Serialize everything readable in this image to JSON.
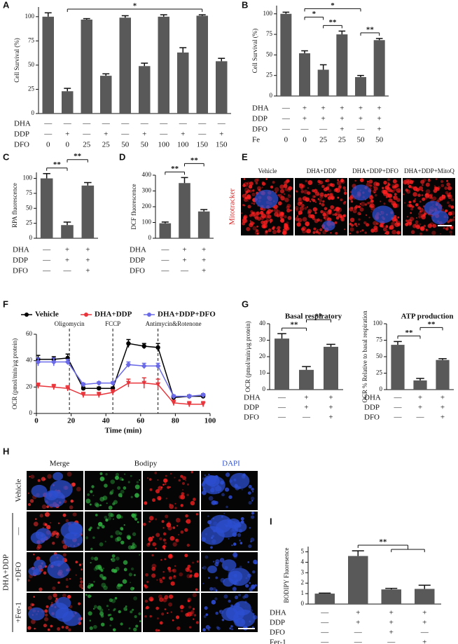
{
  "chart_data": [
    {
      "type": "bar",
      "letter": "A",
      "ylabel": "Cell Survival  (%)",
      "ylim": [
        0,
        110
      ],
      "yticks": [
        0,
        25,
        50,
        75,
        100
      ],
      "values": [
        100,
        23,
        97,
        39,
        99,
        49,
        100,
        63,
        101,
        54
      ],
      "errors": [
        4,
        3,
        1,
        2,
        2,
        3,
        2,
        5,
        1,
        3
      ],
      "rows": [
        {
          "label": "DHA",
          "signs": [
            "—",
            "—",
            "—",
            "—",
            "—",
            "—",
            "—",
            "—",
            "—",
            "—"
          ]
        },
        {
          "label": "DDP",
          "signs": [
            "—",
            "+",
            "—",
            "+",
            "—",
            "+",
            "—",
            "+",
            "—",
            "+"
          ]
        },
        {
          "label": "DFO",
          "signs": [
            "0",
            "0",
            "25",
            "25",
            "50",
            "50",
            "100",
            "100",
            "150",
            "150"
          ]
        }
      ],
      "brackets": [
        {
          "from": 1,
          "to": 8,
          "label": "*"
        }
      ]
    },
    {
      "type": "bar",
      "letter": "B",
      "ylabel": "Cell Survival  (%)",
      "ylim": [
        0,
        110
      ],
      "yticks": [
        0,
        25,
        50,
        75,
        100
      ],
      "values": [
        100,
        52,
        32,
        75,
        23,
        68
      ],
      "errors": [
        2,
        3,
        6,
        4,
        2,
        2
      ],
      "rows": [
        {
          "label": "DHA",
          "signs": [
            "—",
            "+",
            "+",
            "+",
            "+",
            "+"
          ]
        },
        {
          "label": "DDP",
          "signs": [
            "—",
            "+",
            "+",
            "+",
            "+",
            "+"
          ]
        },
        {
          "label": "DFO",
          "signs": [
            "—",
            "—",
            "—",
            "+",
            "—",
            "+"
          ]
        },
        {
          "label": "Fe",
          "signs": [
            "0",
            "0",
            "25",
            "25",
            "50",
            "50"
          ]
        }
      ],
      "brackets": [
        {
          "from": 2,
          "to": 3,
          "label": "**"
        },
        {
          "from": 1,
          "to": 2,
          "label": "*"
        },
        {
          "from": 4,
          "to": 5,
          "label": "**"
        },
        {
          "from": 1,
          "to": 4,
          "label": "*"
        }
      ]
    },
    {
      "type": "bar",
      "letter": "C",
      "ylabel": "RPA fluorescence",
      "ylim": [
        0,
        110
      ],
      "yticks": [
        0,
        25,
        50,
        75,
        100
      ],
      "values": [
        100,
        22,
        88
      ],
      "errors": [
        8,
        5,
        5
      ],
      "rows": [
        {
          "label": "DHA",
          "signs": [
            "—",
            "+",
            "+"
          ]
        },
        {
          "label": "DDP",
          "signs": [
            "—",
            "+",
            "+"
          ]
        },
        {
          "label": "DFO",
          "signs": [
            "—",
            "—",
            "+"
          ]
        }
      ],
      "brackets": [
        {
          "from": 0,
          "to": 1,
          "label": "**"
        },
        {
          "from": 1,
          "to": 2,
          "label": "**"
        }
      ]
    },
    {
      "type": "bar",
      "letter": "D",
      "ylabel": "DCF fluorescence",
      "ylim": [
        0,
        400
      ],
      "yticks": [
        0,
        100,
        200,
        300,
        400
      ],
      "values": [
        95,
        350,
        170
      ],
      "errors": [
        8,
        35,
        12
      ],
      "rows": [
        {
          "label": "DHA",
          "signs": [
            "—",
            "+",
            "+"
          ]
        },
        {
          "label": "DDP",
          "signs": [
            "—",
            "+",
            "+"
          ]
        },
        {
          "label": "DFO",
          "signs": [
            "—",
            "—",
            "+"
          ]
        }
      ],
      "brackets": [
        {
          "from": 0,
          "to": 1,
          "label": "**"
        },
        {
          "from": 1,
          "to": 2,
          "label": "**"
        }
      ]
    },
    {
      "type": "line",
      "letter": "F",
      "xlabel": "Time (min)",
      "ylabel": "OCR (pmol/min/μg protein)",
      "xlim": [
        0,
        100
      ],
      "xticks": [
        0,
        20,
        40,
        60,
        80,
        100
      ],
      "ylim": [
        0,
        60
      ],
      "yticks": [
        0,
        20,
        40,
        60
      ],
      "x": [
        1,
        10,
        18,
        27,
        36,
        44,
        53,
        62,
        70,
        79,
        88,
        96
      ],
      "events": [
        {
          "x": 19,
          "label": "Oligomycin"
        },
        {
          "x": 44,
          "label": "FCCP"
        },
        {
          "x": 70,
          "label": "Antimycin&Rotenone"
        }
      ],
      "series": [
        {
          "name": "Vehicle",
          "color": "#000000",
          "values": [
            41,
            41,
            42,
            19,
            19,
            19,
            53,
            51,
            50,
            12,
            13,
            13
          ],
          "errors": [
            3,
            2,
            3,
            1,
            1,
            1,
            3,
            2,
            3,
            1,
            1,
            1
          ]
        },
        {
          "name": "DHA+DDP",
          "color": "#e8343a",
          "values": [
            21,
            20,
            19,
            14,
            14,
            16,
            23,
            23,
            22,
            8,
            7,
            7
          ],
          "errors": [
            2,
            2,
            2,
            2,
            2,
            2,
            3,
            4,
            4,
            2,
            2,
            2
          ]
        },
        {
          "name": "DHA+DDP+DFO",
          "color": "#6a6ae8",
          "values": [
            39,
            39,
            39,
            22,
            23,
            23,
            37,
            36,
            36,
            13,
            13,
            14
          ],
          "errors": [
            3,
            3,
            2,
            1,
            1,
            1,
            2,
            2,
            2,
            1,
            1,
            1
          ]
        }
      ]
    },
    {
      "type": "bar",
      "letter": "G",
      "title": "Basal respiratory",
      "ylabel": "OCR (pmol/min/μg protein)",
      "ylim": [
        0,
        40
      ],
      "yticks": [
        0,
        10,
        20,
        30,
        40
      ],
      "values": [
        31,
        12,
        26
      ],
      "errors": [
        3,
        2,
        1.5
      ],
      "rows": [
        {
          "label": "DHA",
          "signs": [
            "—",
            "+",
            "+"
          ]
        },
        {
          "label": "DDP",
          "signs": [
            "—",
            "+",
            "+"
          ]
        },
        {
          "label": "DFO",
          "signs": [
            "—",
            "—",
            "+"
          ]
        }
      ],
      "brackets": [
        {
          "from": 0,
          "to": 1,
          "label": "**"
        },
        {
          "from": 1,
          "to": 2,
          "label": "**"
        }
      ]
    },
    {
      "type": "bar",
      "title": "ATP production",
      "ylabel": "OCR % Relative to basal respiration",
      "ylim": [
        0,
        100
      ],
      "yticks": [
        0,
        25,
        50,
        75,
        100
      ],
      "values": [
        68,
        14,
        45
      ],
      "errors": [
        5,
        3,
        2
      ],
      "rows": [
        {
          "label": "DHA",
          "signs": [
            "—",
            "+",
            "+"
          ]
        },
        {
          "label": "DDP",
          "signs": [
            "—",
            "+",
            "+"
          ]
        },
        {
          "label": "DFO",
          "signs": [
            "—",
            "—",
            "+"
          ]
        }
      ],
      "brackets": [
        {
          "from": 0,
          "to": 1,
          "label": "**"
        },
        {
          "from": 1,
          "to": 2,
          "label": "**"
        }
      ]
    },
    {
      "type": "bar",
      "letter": "I",
      "ylabel": "BODIPY Fluoresence",
      "ylim": [
        0,
        5.5
      ],
      "yticks": [
        0,
        1,
        2,
        3,
        4,
        5
      ],
      "values": [
        1.0,
        4.6,
        1.4,
        1.45
      ],
      "errors": [
        0.05,
        0.5,
        0.1,
        0.35
      ],
      "rows": [
        {
          "label": "DHA",
          "signs": [
            "—",
            "+",
            "+",
            "+"
          ]
        },
        {
          "label": "DDP",
          "signs": [
            "—",
            "+",
            "+",
            "+"
          ]
        },
        {
          "label": "DFO",
          "signs": [
            "—",
            "—",
            "+",
            "—"
          ]
        },
        {
          "label": "Fer-1",
          "signs": [
            "—",
            "—",
            "—",
            "+"
          ]
        }
      ],
      "brackets": [
        {
          "from": 1,
          "to": [
            2,
            3
          ],
          "label": "**"
        }
      ]
    }
  ],
  "panel_e": {
    "letter": "E",
    "stain": "Mitotracker",
    "columns": [
      "Vehicle",
      "DHA+DDP",
      "DHA+DDP+DFO",
      "DHA+DDP+MitoQ"
    ]
  },
  "panel_h": {
    "letter": "H",
    "columns": [
      "Merge",
      "Bodipy",
      "DAPI"
    ],
    "group": "DHA+DDP",
    "rows": [
      "Vehicle",
      "—",
      "+DFO",
      "+Fer-1"
    ]
  }
}
